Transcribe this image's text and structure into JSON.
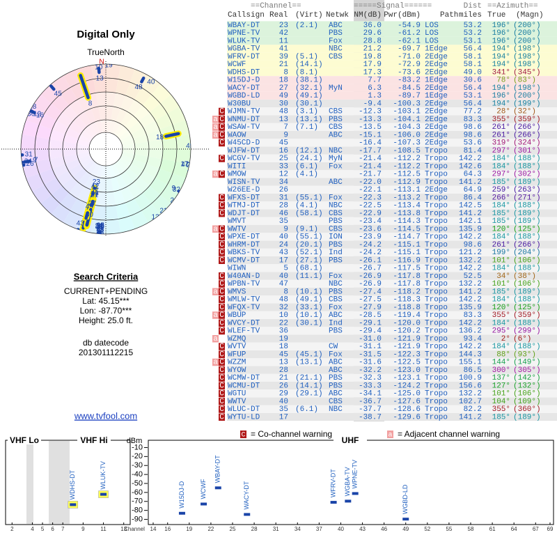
{
  "polar": {
    "title": "Digital Only",
    "north_label": "TrueNorth",
    "north": "N",
    "rlim": [
      0,
      -115
    ]
  },
  "criteria": {
    "title": "Search Criteria",
    "mode": "CURRENT+PENDING",
    "lat": "Lat: 45.15***",
    "lon": "Lon: -87.70***",
    "height": "Height: 25.0 ft.",
    "datecode_label": "db datecode",
    "datecode": "201301112215",
    "link": "www.tvfool.com"
  },
  "table": {
    "header_top": [
      "==Channel==",
      "=====Signal======",
      "Dist",
      "==Azimuth=="
    ],
    "columns": [
      "Callsign",
      "Real",
      "(Virt)",
      "Netwk",
      "NM(dB)",
      "Pwr(dBm)",
      "Path",
      "miles",
      "True",
      "(Magn)"
    ],
    "rows": [
      {
        "color": "#dcf3dc",
        "cells": [
          "WBAY-DT",
          "23",
          "(2.1)",
          "ABC",
          "36.0",
          "-54.9",
          "LOS",
          "53.2",
          "196°",
          "(200°)"
        ]
      },
      {
        "color": "#dcf3dc",
        "cells": [
          "WPNE-TV",
          "42",
          null,
          "PBS",
          "29.6",
          "-61.2",
          "LOS",
          "53.2",
          "196°",
          "(200°)"
        ]
      },
      {
        "color": "#dcf3dc",
        "cells": [
          "WLUK-TV",
          "11",
          null,
          "Fox",
          "28.8",
          "-62.1",
          "LOS",
          "53.1",
          "196°",
          "(200°)"
        ]
      },
      {
        "color": "#fdfcd2",
        "cells": [
          "WGBA-TV",
          "41",
          null,
          "NBC",
          "21.2",
          "-69.7",
          "1Edge",
          "56.4",
          "194°",
          "(198°)"
        ]
      },
      {
        "color": "#fdfcd2",
        "cells": [
          "WFRV-DT",
          "39",
          "(5.1)",
          "CBS",
          "19.8",
          "-71.0",
          "2Edge",
          "58.1",
          "194°",
          "(198°)"
        ]
      },
      {
        "color": "#fdfcd2",
        "cells": [
          "WCWF",
          "21",
          "(14.1)",
          null,
          "17.9",
          "-72.9",
          "2Edge",
          "58.1",
          "194°",
          "(198°)"
        ]
      },
      {
        "color": "#fdfcd2",
        "cells": [
          "WDHS-DT",
          "8",
          "(8.1)",
          null,
          "17.3",
          "-73.6",
          "2Edge",
          "49.0",
          "341°",
          "(345°)"
        ]
      },
      {
        "color": "#fbe3e3",
        "cells": [
          "W15DJ-D",
          "18",
          "(38.1)",
          null,
          "7.7",
          "-83.2",
          "1Edge",
          "30.6",
          "78°",
          "(83°)"
        ]
      },
      {
        "color": "#fbe3e3",
        "cells": [
          "WACY-DT",
          "27",
          "(32.1)",
          "MyN",
          "6.3",
          "-84.5",
          "2Edge",
          "56.4",
          "194°",
          "(198°)"
        ]
      },
      {
        "color": "#fbe3e3",
        "cells": [
          "WGBD-LD",
          "49",
          "(49.1)",
          null,
          "1.3",
          "-89.7",
          "1Edge",
          "53.1",
          "196°",
          "(200°)"
        ]
      },
      {
        "color": "#e6e6e6",
        "cells": [
          "W30BU",
          "30",
          "(30.1)",
          null,
          "-9.4",
          "-100.3",
          "2Edge",
          "56.4",
          "194°",
          "(199°)"
        ]
      },
      {
        "color": "#f4f4f4",
        "warn": [
          "C"
        ],
        "cells": [
          "WJMN-TV",
          "48",
          "(3.1)",
          "CBS",
          "-12.3",
          "-103.1",
          "2Edge",
          "77.2",
          "28°",
          "(32°)"
        ]
      },
      {
        "color": "#e6e6e6",
        "warn": [
          "a",
          "C"
        ],
        "cells": [
          "WNMU-DT",
          "13",
          "(13.1)",
          "PBS",
          "-13.3",
          "-104.1",
          "2Edge",
          "83.3",
          "355°",
          "(359°)"
        ]
      },
      {
        "color": "#f4f4f4",
        "warn": [
          "a",
          "C"
        ],
        "cells": [
          "WSAW-TV",
          "7",
          "(7.1)",
          "CBS",
          "-13.5",
          "-104.3",
          "2Edge",
          "98.6",
          "261°",
          "(266°)"
        ]
      },
      {
        "color": "#e6e6e6",
        "warn": [
          "a",
          "C"
        ],
        "cells": [
          "WAOW",
          "9",
          null,
          "ABC",
          "-15.1",
          "-106.0",
          "2Edge",
          "98.6",
          "261°",
          "(266°)"
        ]
      },
      {
        "color": "#f4f4f4",
        "warn": [
          "C"
        ],
        "cells": [
          "W45CD-D",
          "45",
          null,
          null,
          "-16.4",
          "-107.3",
          "2Edge",
          "53.6",
          "319°",
          "(324°)"
        ]
      },
      {
        "color": "#e6e6e6",
        "cells": [
          "WJFW-DT",
          "16",
          "(12.1)",
          "NBC",
          "-17.7",
          "-108.5",
          "Tropo",
          "81.4",
          "297°",
          "(301°)"
        ]
      },
      {
        "color": "#f4f4f4",
        "warn": [
          "C"
        ],
        "cells": [
          "WCGV-TV",
          "25",
          "(24.1)",
          "MyN",
          "-21.4",
          "-112.2",
          "Tropo",
          "142.2",
          "184°",
          "(188°)"
        ]
      },
      {
        "color": "#e6e6e6",
        "cells": [
          "WITI",
          "33",
          "(6.1)",
          "Fox",
          "-21.4",
          "-112.2",
          "Tropo",
          "142.6",
          "184°",
          "(188°)"
        ]
      },
      {
        "color": "#f4f4f4",
        "warn": [
          "a",
          "C"
        ],
        "cells": [
          "WMOW",
          "12",
          "(4.1)",
          null,
          "-21.7",
          "-112.5",
          "Tropo",
          "64.3",
          "297°",
          "(302°)"
        ]
      },
      {
        "color": "#e6e6e6",
        "cells": [
          "WISN-TV",
          "34",
          null,
          "ABC",
          "-22.0",
          "-112.9",
          "Tropo",
          "141.2",
          "185°",
          "(189°)"
        ]
      },
      {
        "color": "#f4f4f4",
        "cells": [
          "W26EE-D",
          "26",
          null,
          null,
          "-22.1",
          "-113.1",
          "2Edge",
          "64.9",
          "259°",
          "(263°)"
        ]
      },
      {
        "color": "#e6e6e6",
        "warn": [
          "C"
        ],
        "cells": [
          "WFXS-DT",
          "31",
          "(55.1)",
          "Fox",
          "-22.3",
          "-113.2",
          "Tropo",
          "86.4",
          "266°",
          "(271°)"
        ]
      },
      {
        "color": "#f4f4f4",
        "warn": [
          "C"
        ],
        "cells": [
          "WTMJ-DT",
          "28",
          "(4.1)",
          "NBC",
          "-22.5",
          "-113.4",
          "Tropo",
          "142.5",
          "184°",
          "(188°)"
        ]
      },
      {
        "color": "#e6e6e6",
        "warn": [
          "C"
        ],
        "cells": [
          "WDJT-DT",
          "46",
          "(58.1)",
          "CBS",
          "-22.9",
          "-113.8",
          "Tropo",
          "141.2",
          "185°",
          "(189°)"
        ]
      },
      {
        "color": "#f4f4f4",
        "cells": [
          "WMVT",
          "35",
          null,
          "PBS",
          "-23.4",
          "-114.3",
          "Tropo",
          "142.1",
          "185°",
          "(189°)"
        ]
      },
      {
        "color": "#e6e6e6",
        "warn": [
          "a",
          "C"
        ],
        "cells": [
          "WWTV",
          "9",
          "(9.1)",
          "CBS",
          "-23.6",
          "-114.5",
          "Tropo",
          "135.9",
          "120°",
          "(125°)"
        ]
      },
      {
        "color": "#f4f4f4",
        "warn": [
          "C"
        ],
        "cells": [
          "WPXE-DT",
          "40",
          "(55.1)",
          "ION",
          "-23.9",
          "-114.7",
          "Tropo",
          "142.2",
          "184°",
          "(188°)"
        ]
      },
      {
        "color": "#e6e6e6",
        "warn": [
          "C"
        ],
        "cells": [
          "WHRM-DT",
          "24",
          "(20.1)",
          "PBS",
          "-24.2",
          "-115.1",
          "Tropo",
          "98.6",
          "261°",
          "(266°)"
        ]
      },
      {
        "color": "#f4f4f4",
        "warn": [
          "C"
        ],
        "cells": [
          "WBKS-TV",
          "43",
          "(52.1)",
          "Ind",
          "-24.2",
          "-115.1",
          "Tropo",
          "121.2",
          "199°",
          "(204°)"
        ]
      },
      {
        "color": "#e6e6e6",
        "warn": [
          "C"
        ],
        "cells": [
          "WCMV-DT",
          "17",
          "(27.1)",
          "PBS",
          "-26.1",
          "-116.9",
          "Tropo",
          "132.2",
          "101°",
          "(106°)"
        ]
      },
      {
        "color": "#f4f4f4",
        "cells": [
          "WIWN",
          "5",
          "(68.1)",
          null,
          "-26.7",
          "-117.5",
          "Tropo",
          "142.2",
          "184°",
          "(188°)"
        ]
      },
      {
        "color": "#e6e6e6",
        "warn": [
          "C"
        ],
        "cells": [
          "W40AN-D",
          "40",
          "(11.1)",
          "Fox",
          "-26.9",
          "-117.8",
          "Tropo",
          "52.5",
          "34°",
          "(38°)"
        ]
      },
      {
        "color": "#f4f4f4",
        "warn": [
          "C"
        ],
        "cells": [
          "WPBN-TV",
          "47",
          null,
          "NBC",
          "-26.9",
          "-117.8",
          "Tropo",
          "132.2",
          "101°",
          "(106°)"
        ]
      },
      {
        "color": "#e6e6e6",
        "warn": [
          "a",
          "C"
        ],
        "cells": [
          "WMVS",
          "8",
          "(10.1)",
          "PBS",
          "-27.4",
          "-118.2",
          "Tropo",
          "141.2",
          "185°",
          "(189°)"
        ]
      },
      {
        "color": "#f4f4f4",
        "warn": [
          "C"
        ],
        "cells": [
          "WMLW-TV",
          "48",
          "(49.1)",
          "CBS",
          "-27.5",
          "-118.3",
          "Tropo",
          "142.2",
          "184°",
          "(188°)"
        ]
      },
      {
        "color": "#e6e6e6",
        "warn": [
          "C"
        ],
        "cells": [
          "WFQX-TV",
          "32",
          "(33.1)",
          "Fox",
          "-27.9",
          "-118.8",
          "Tropo",
          "135.9",
          "120°",
          "(125°)"
        ]
      },
      {
        "color": "#f4f4f4",
        "warn": [
          "a",
          "C"
        ],
        "cells": [
          "WBUP",
          "10",
          "(10.1)",
          "ABC",
          "-28.5",
          "-119.4",
          "Tropo",
          "83.3",
          "355°",
          "(359°)"
        ]
      },
      {
        "color": "#e6e6e6",
        "warn": [
          "C"
        ],
        "cells": [
          "WVCY-DT",
          "22",
          "(30.1)",
          "Ind",
          "-29.1",
          "-120.0",
          "Tropo",
          "142.2",
          "184°",
          "(188°)"
        ]
      },
      {
        "color": "#f4f4f4",
        "warn": [
          "C"
        ],
        "cells": [
          "WLEF-TV",
          "36",
          null,
          "PBS",
          "-29.4",
          "-120.2",
          "Tropo",
          "136.2",
          "295°",
          "(299°)"
        ]
      },
      {
        "color": "#e6e6e6",
        "warn": [
          "a"
        ],
        "cells": [
          "WZMQ",
          "19",
          null,
          null,
          "-31.0",
          "-121.9",
          "Tropo",
          "93.4",
          "2°",
          "(6°)"
        ]
      },
      {
        "color": "#f4f4f4",
        "warn": [
          "C"
        ],
        "cells": [
          "WVTV",
          "18",
          null,
          "CW",
          "-31.1",
          "-121.9",
          "Tropo",
          "142.2",
          "184°",
          "(188°)"
        ]
      },
      {
        "color": "#e6e6e6",
        "warn": [
          "C"
        ],
        "cells": [
          "WFUP",
          "45",
          "(45.1)",
          "Fox",
          "-31.5",
          "-122.3",
          "Tropo",
          "144.3",
          "88°",
          "(93°)"
        ]
      },
      {
        "color": "#f4f4f4",
        "warn": [
          "a",
          "C"
        ],
        "cells": [
          "WZZM",
          "13",
          "(13.1)",
          "ABC",
          "-31.6",
          "-122.5",
          "Tropo",
          "155.1",
          "144°",
          "(149°)"
        ]
      },
      {
        "color": "#e6e6e6",
        "warn": [
          "C"
        ],
        "cells": [
          "WYOW",
          "28",
          null,
          "ABC",
          "-32.2",
          "-123.0",
          "Tropo",
          "86.5",
          "300°",
          "(305°)"
        ]
      },
      {
        "color": "#f4f4f4",
        "warn": [
          "C"
        ],
        "cells": [
          "WCMW-DT",
          "21",
          "(21.1)",
          "PBS",
          "-32.3",
          "-123.1",
          "Tropo",
          "100.9",
          "137°",
          "(142°)"
        ]
      },
      {
        "color": "#e6e6e6",
        "warn": [
          "C"
        ],
        "cells": [
          "WCMU-DT",
          "26",
          "(14.1)",
          "PBS",
          "-33.3",
          "-124.2",
          "Tropo",
          "156.6",
          "127°",
          "(132°)"
        ]
      },
      {
        "color": "#f4f4f4",
        "warn": [
          "C"
        ],
        "cells": [
          "WGTU",
          "29",
          "(29.1)",
          "ABC",
          "-34.1",
          "-125.0",
          "Tropo",
          "132.2",
          "101°",
          "(106°)"
        ]
      },
      {
        "color": "#e6e6e6",
        "warn": [
          "C"
        ],
        "cells": [
          "WWTV",
          "40",
          null,
          "CBS",
          "-36.7",
          "-127.6",
          "Tropo",
          "102.7",
          "104°",
          "(109°)"
        ]
      },
      {
        "color": "#f4f4f4",
        "warn": [
          "C"
        ],
        "cells": [
          "WLUC-DT",
          "35",
          "(6.1)",
          "NBC",
          "-37.7",
          "-128.6",
          "Tropo",
          "82.2",
          "355°",
          "(360°)"
        ]
      },
      {
        "color": "#e6e6e6",
        "warn": [
          "C"
        ],
        "cells": [
          "WYTU-LD",
          "17",
          null,
          null,
          "-38.7",
          "-129.6",
          "Tropo",
          "141.2",
          "185°",
          "(189°)"
        ]
      }
    ]
  },
  "legend": {
    "co": {
      "mark": "C",
      "text": "= Co-channel warning",
      "color": "#b01818"
    },
    "adj": {
      "mark": "a",
      "text": "= Adjacent channel warning",
      "color": "#f2a0a0"
    }
  },
  "chart_data": {
    "type": "bar",
    "ylabel": "dBm",
    "xlabel": "Channel",
    "ylim": [
      -5,
      -95
    ],
    "yticks": [
      -10,
      -20,
      -30,
      -40,
      -50,
      -60,
      -70,
      -80,
      -90
    ],
    "bar_color": "#1a44a8",
    "panels": [
      {
        "titles": [
          "VHF Lo",
          "VHF Hi"
        ],
        "xlim": [
          1.5,
          13.5
        ],
        "xticks": [
          2,
          4,
          5,
          6,
          7,
          9,
          11,
          13
        ],
        "highlight": "#ffff55"
      },
      {
        "titles": [
          "UHF"
        ],
        "xlim": [
          14,
          69
        ],
        "xticks": [
          14,
          16,
          19,
          22,
          25,
          28,
          31,
          34,
          37,
          40,
          43,
          46,
          49,
          52,
          55,
          58,
          61,
          64,
          67,
          69
        ]
      }
    ]
  }
}
